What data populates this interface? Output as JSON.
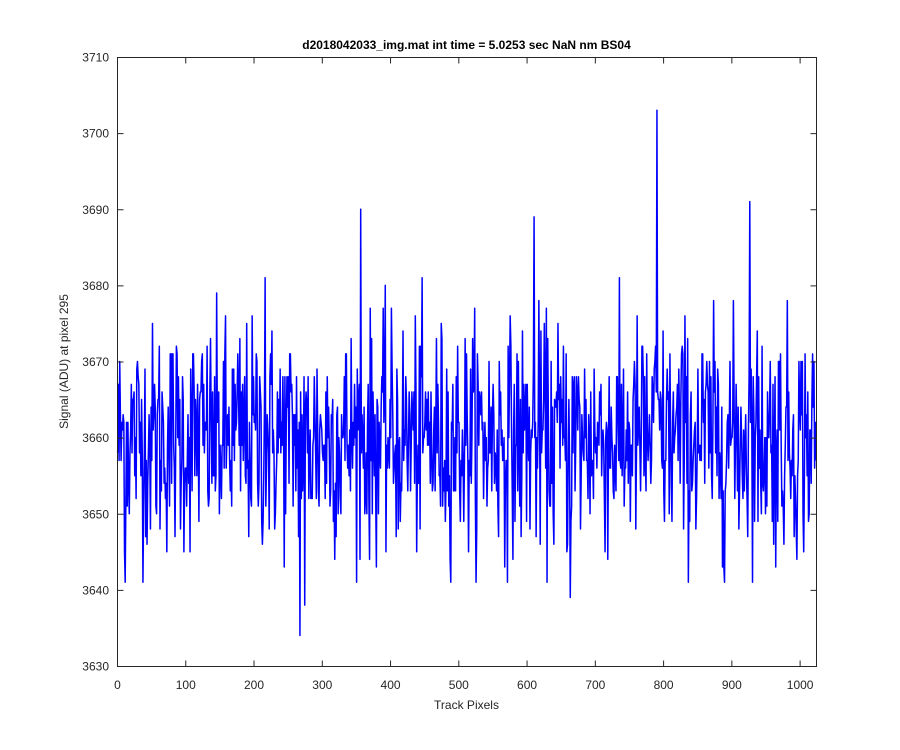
{
  "chart_data": {
    "type": "line",
    "title": "d2018042033_img.mat int time = 5.0253 sec  NaN nm BS04",
    "xlabel": "Track Pixels",
    "ylabel": "Signal (ADU) at pixel 295",
    "xlim": [
      0,
      1024
    ],
    "ylim": [
      3630,
      3710
    ],
    "xticks": [
      0,
      100,
      200,
      300,
      400,
      500,
      600,
      700,
      800,
      900,
      1000
    ],
    "yticks": [
      3630,
      3640,
      3650,
      3660,
      3670,
      3680,
      3690,
      3700,
      3710
    ],
    "grid": false,
    "series_color": "#0000ff",
    "series": [
      {
        "name": "",
        "points_note": "",
        "x_start": 1,
        "x_step": 1,
        "values": []
      }
    ]
  }
}
